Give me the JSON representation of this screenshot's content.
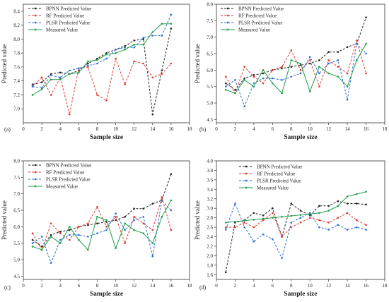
{
  "chart_data": [
    {
      "type": "line",
      "panel_label": "(a)",
      "xlabel": "Sample size",
      "ylabel": "Predicted value",
      "xlim": [
        0,
        18
      ],
      "ylim": [
        6.8,
        8.5
      ],
      "xticks": [
        0,
        2,
        4,
        6,
        8,
        10,
        12,
        14,
        16,
        18
      ],
      "yticks": [
        7.0,
        7.2,
        7.4,
        7.6,
        7.8,
        8.0,
        8.2,
        8.4
      ],
      "ytick_labels": [
        "7.0",
        "7.2",
        "7.4",
        "7.6",
        "7.8",
        "8.0",
        "8.2",
        "8.4"
      ],
      "legend_position": "top-left",
      "x": [
        1,
        2,
        3,
        4,
        5,
        6,
        7,
        8,
        9,
        10,
        11,
        12,
        13,
        14,
        15,
        16
      ],
      "series": [
        {
          "name": "BPNN Predicted Value",
          "color": "#222222",
          "style": "dashed",
          "values": [
            7.35,
            7.38,
            7.5,
            7.52,
            7.5,
            7.55,
            7.65,
            7.72,
            7.8,
            7.85,
            7.9,
            7.98,
            8.0,
            6.92,
            7.55,
            8.15
          ]
        },
        {
          "name": "RF Predicted Value",
          "color": "#e03a2f",
          "style": "dashed",
          "values": [
            7.32,
            7.45,
            7.2,
            7.45,
            6.92,
            7.58,
            7.6,
            7.2,
            7.12,
            7.72,
            7.35,
            7.68,
            7.65,
            7.45,
            7.5,
            7.65
          ]
        },
        {
          "name": "PLSR Predicted Value",
          "color": "#2d6fd6",
          "style": "dashed",
          "values": [
            7.32,
            7.3,
            7.48,
            7.45,
            7.55,
            7.58,
            7.62,
            7.65,
            7.72,
            7.85,
            7.88,
            7.88,
            8.02,
            8.05,
            8.05,
            8.35
          ]
        },
        {
          "name": "Measured Value",
          "color": "#1e9e4a",
          "style": "solid",
          "values": [
            7.2,
            7.28,
            7.42,
            7.42,
            7.5,
            7.52,
            7.68,
            7.7,
            7.78,
            7.8,
            7.85,
            7.92,
            7.92,
            8.1,
            8.22,
            8.22
          ]
        }
      ]
    },
    {
      "type": "line",
      "panel_label": "(b)",
      "xlabel": "Sample size",
      "ylabel": "Predicted value",
      "xlim": [
        0,
        18
      ],
      "ylim": [
        4.4,
        8.0
      ],
      "xticks": [
        0,
        2,
        4,
        6,
        8,
        10,
        12,
        14,
        16,
        18
      ],
      "yticks": [
        4.5,
        5.0,
        5.5,
        6.0,
        6.5,
        7.0,
        7.5,
        8.0
      ],
      "ytick_labels": [
        "4.5",
        "5.0",
        "5.5",
        "6.0",
        "6.5",
        "7.0",
        "7.5",
        "8.0"
      ],
      "legend_position": "top-left",
      "x": [
        1,
        2,
        3,
        4,
        5,
        6,
        7,
        8,
        9,
        10,
        11,
        12,
        13,
        14,
        15,
        16
      ],
      "series": [
        {
          "name": "BPNN Predicted Value",
          "color": "#222222",
          "style": "dashed",
          "values": [
            5.6,
            5.4,
            5.75,
            5.85,
            5.9,
            6.0,
            6.05,
            6.1,
            6.15,
            6.2,
            6.3,
            6.55,
            6.55,
            6.7,
            6.8,
            7.6
          ]
        },
        {
          "name": "RF Predicted Value",
          "color": "#e03a2f",
          "style": "dashed",
          "values": [
            5.8,
            5.3,
            6.1,
            5.8,
            5.6,
            6.0,
            6.1,
            6.6,
            6.0,
            6.3,
            5.5,
            6.3,
            6.1,
            5.9,
            6.9,
            5.9
          ]
        },
        {
          "name": "PLSR Predicted Value",
          "color": "#2d6fd6",
          "style": "dashed",
          "values": [
            5.5,
            5.7,
            4.9,
            5.6,
            5.75,
            5.75,
            5.7,
            5.8,
            5.9,
            6.4,
            5.9,
            6.2,
            6.3,
            5.1,
            6.8,
            6.5
          ]
        },
        {
          "name": "Measured Value",
          "color": "#1e9e4a",
          "style": "solid",
          "values": [
            5.4,
            5.3,
            5.7,
            5.5,
            6.0,
            5.6,
            5.3,
            6.3,
            6.2,
            5.35,
            6.1,
            5.9,
            5.8,
            5.5,
            6.3,
            6.8
          ]
        }
      ]
    },
    {
      "type": "line",
      "panel_label": "(c)",
      "xlabel": "Sample size",
      "ylabel": "Predicted value",
      "xlim": [
        0,
        18
      ],
      "ylim": [
        4.4,
        8.0
      ],
      "xticks": [
        0,
        2,
        4,
        6,
        8,
        10,
        12,
        14,
        16,
        18
      ],
      "yticks": [
        4.5,
        5.0,
        5.5,
        6.0,
        6.5,
        7.0,
        7.5,
        8.0
      ],
      "ytick_labels": [
        "4.5",
        "5.0",
        "5.5",
        "6.0",
        "6.5",
        "7.0",
        "7.5",
        "8.0"
      ],
      "legend_position": "top-left",
      "x": [
        1,
        2,
        3,
        4,
        5,
        6,
        7,
        8,
        9,
        10,
        11,
        12,
        13,
        14,
        15,
        16
      ],
      "series": [
        {
          "name": "BPNN Predicted Value",
          "color": "#222222",
          "style": "dashed",
          "values": [
            5.6,
            5.4,
            5.75,
            5.85,
            5.9,
            6.0,
            6.05,
            6.1,
            6.15,
            6.2,
            6.3,
            6.55,
            6.55,
            6.7,
            6.8,
            7.6
          ]
        },
        {
          "name": "RF Predicted Value",
          "color": "#e03a2f",
          "style": "dashed",
          "values": [
            5.8,
            5.3,
            6.1,
            5.8,
            5.6,
            6.0,
            6.1,
            6.6,
            6.0,
            6.3,
            5.5,
            6.3,
            6.1,
            5.9,
            6.9,
            5.9
          ]
        },
        {
          "name": "PLSR Predicted Value",
          "color": "#2d6fd6",
          "style": "dashed",
          "values": [
            5.5,
            5.7,
            4.9,
            5.6,
            5.75,
            5.75,
            5.7,
            5.8,
            5.9,
            6.4,
            5.9,
            6.2,
            6.3,
            5.1,
            6.8,
            6.5
          ]
        },
        {
          "name": "Measured Value",
          "color": "#1e9e4a",
          "style": "solid",
          "values": [
            5.4,
            5.3,
            5.7,
            5.5,
            6.0,
            5.6,
            5.3,
            6.3,
            6.2,
            5.35,
            6.1,
            5.9,
            5.8,
            5.5,
            6.3,
            6.8
          ]
        }
      ]
    },
    {
      "type": "line",
      "panel_label": "(d)",
      "xlabel": "Sample size",
      "ylabel": "Predicted value",
      "xlim": [
        0,
        18
      ],
      "ylim": [
        1.5,
        4.0
      ],
      "xticks": [
        0,
        2,
        4,
        6,
        8,
        10,
        12,
        14,
        16,
        18
      ],
      "yticks": [
        1.6,
        1.8,
        2.0,
        2.2,
        2.4,
        2.6,
        2.8,
        3.0,
        3.2,
        3.4,
        3.6,
        3.8,
        4.0
      ],
      "ytick_labels": [
        "1.6",
        "1.8",
        "2.0",
        "2.2",
        "2.4",
        "2.6",
        "2.8",
        "3.0",
        "3.2",
        "3.4",
        "3.6",
        "3.8",
        "4.0"
      ],
      "legend_position": "top-center",
      "x": [
        1,
        2,
        3,
        4,
        5,
        6,
        7,
        8,
        9,
        10,
        11,
        12,
        13,
        14,
        15,
        16
      ],
      "series": [
        {
          "name": "BPNN Predicted Value",
          "color": "#222222",
          "style": "dashed",
          "values": [
            1.65,
            2.7,
            2.75,
            2.9,
            2.85,
            3.0,
            2.4,
            3.1,
            2.95,
            2.85,
            3.05,
            3.05,
            3.15,
            3.1,
            3.1,
            3.08
          ]
        },
        {
          "name": "RF Predicted Value",
          "color": "#e03a2f",
          "style": "dashed",
          "values": [
            2.6,
            2.6,
            2.7,
            2.6,
            2.75,
            2.9,
            2.4,
            2.6,
            2.7,
            2.8,
            2.75,
            2.7,
            2.8,
            2.9,
            2.75,
            2.65
          ]
        },
        {
          "name": "PLSR Predicted Value",
          "color": "#2d6fd6",
          "style": "dashed",
          "values": [
            2.55,
            3.1,
            2.6,
            2.3,
            2.45,
            2.35,
            1.95,
            2.7,
            2.8,
            2.9,
            2.6,
            2.55,
            2.65,
            2.55,
            2.6,
            2.55
          ]
        },
        {
          "name": "Measured Value",
          "color": "#1e9e4a",
          "style": "solid",
          "values": [
            2.7,
            2.72,
            2.74,
            2.76,
            2.78,
            2.8,
            2.82,
            2.84,
            2.86,
            2.88,
            2.9,
            2.95,
            3.05,
            3.25,
            3.3,
            3.35
          ]
        }
      ]
    }
  ]
}
